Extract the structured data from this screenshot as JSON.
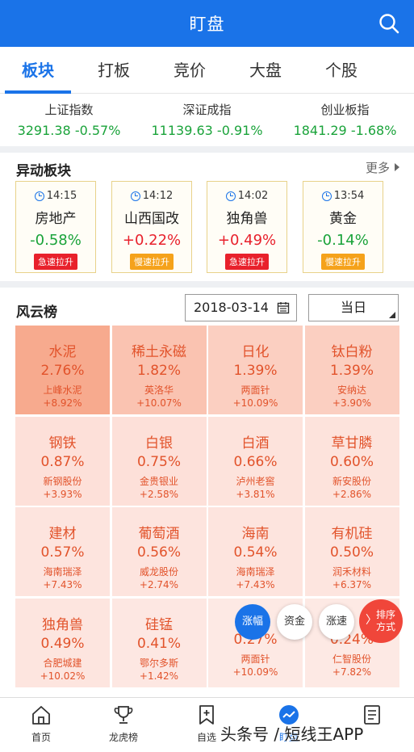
{
  "header": {
    "title": "盯盘"
  },
  "tabs": [
    {
      "label": "板块",
      "active": true
    },
    {
      "label": "打板"
    },
    {
      "label": "竞价"
    },
    {
      "label": "大盘"
    },
    {
      "label": "个股"
    }
  ],
  "indices": [
    {
      "name": "上证指数",
      "value": "3291.38 -0.57%"
    },
    {
      "name": "深证成指",
      "value": "11139.63 -0.91%"
    },
    {
      "name": "创业板指",
      "value": "1841.29 -1.68%"
    }
  ],
  "abnormal": {
    "title": "异动板块",
    "more_label": "更多",
    "cards": [
      {
        "time": "14:15",
        "name": "房地产",
        "pct": "-0.58%",
        "direction": "down",
        "badge": "急速拉升",
        "badge_color": "#e8212c"
      },
      {
        "time": "14:12",
        "name": "山西国改",
        "pct": "+0.22%",
        "direction": "up",
        "badge": "慢速拉升",
        "badge_color": "#f5a21b"
      },
      {
        "time": "14:02",
        "name": "独角兽",
        "pct": "+0.49%",
        "direction": "up",
        "badge": "急速拉升",
        "badge_color": "#e8212c"
      },
      {
        "time": "13:54",
        "name": "黄金",
        "pct": "-0.14%",
        "direction": "down",
        "badge": "慢速拉升",
        "badge_color": "#f5a21b"
      }
    ]
  },
  "ranking": {
    "title": "风云榜",
    "date": "2018-03-14",
    "period": "当日",
    "cells": [
      {
        "sector": "水泥",
        "pct": "2.76%",
        "stock": "上峰水泥",
        "stock_pct": "+8.92%",
        "shade": "#f7aa8e"
      },
      {
        "sector": "稀土永磁",
        "pct": "1.82%",
        "stock": "英洛华",
        "stock_pct": "+10.07%",
        "shade": "#fac3b1"
      },
      {
        "sector": "日化",
        "pct": "1.39%",
        "stock": "两面针",
        "stock_pct": "+10.09%",
        "shade": "#fbcfc1"
      },
      {
        "sector": "钛白粉",
        "pct": "1.39%",
        "stock": "安纳达",
        "stock_pct": "+3.90%",
        "shade": "#fbcfc1"
      },
      {
        "sector": "钢铁",
        "pct": "0.87%",
        "stock": "新钢股份",
        "stock_pct": "+3.93%",
        "shade": "#fde0d9"
      },
      {
        "sector": "白银",
        "pct": "0.75%",
        "stock": "金贵银业",
        "stock_pct": "+2.58%",
        "shade": "#fde0d9"
      },
      {
        "sector": "白酒",
        "pct": "0.66%",
        "stock": "泸州老窖",
        "stock_pct": "+3.81%",
        "shade": "#fde3dc"
      },
      {
        "sector": "草甘膦",
        "pct": "0.60%",
        "stock": "新安股份",
        "stock_pct": "+2.86%",
        "shade": "#fde3dc"
      },
      {
        "sector": "建材",
        "pct": "0.57%",
        "stock": "海南瑞泽",
        "stock_pct": "+7.43%",
        "shade": "#fde4de"
      },
      {
        "sector": "葡萄酒",
        "pct": "0.56%",
        "stock": "威龙股份",
        "stock_pct": "+2.74%",
        "shade": "#fde4de"
      },
      {
        "sector": "海南",
        "pct": "0.54%",
        "stock": "海南瑞泽",
        "stock_pct": "+7.43%",
        "shade": "#fde4de"
      },
      {
        "sector": "有机硅",
        "pct": "0.50%",
        "stock": "润禾材料",
        "stock_pct": "+6.37%",
        "shade": "#fde5df"
      },
      {
        "sector": "独角兽",
        "pct": "0.49%",
        "stock": "合肥城建",
        "stock_pct": "+10.02%",
        "shade": "#fde5df"
      },
      {
        "sector": "硅锰",
        "pct": "0.41%",
        "stock": "鄂尔多斯",
        "stock_pct": "+1.42%",
        "shade": "#fde7e2"
      },
      {
        "sector": "",
        "pct": "0.27%",
        "stock": "两面针",
        "stock_pct": "+10.09%",
        "shade": "#fde9e4"
      },
      {
        "sector": "",
        "pct": "0.24%",
        "stock": "仁智股份",
        "stock_pct": "+7.82%",
        "shade": "#fde9e4"
      }
    ]
  },
  "float_buttons": {
    "gain": "涨幅",
    "capital": "资金",
    "speed": "涨速",
    "sort": "排序方式"
  },
  "colors": {
    "up": "#e8212c",
    "down": "#1aa33a",
    "accent": "#1a73e8"
  },
  "bottom_nav": [
    {
      "label": "首页",
      "icon": "home-icon"
    },
    {
      "label": "龙虎榜",
      "icon": "trophy-icon"
    },
    {
      "label": "自选",
      "icon": "bookmark-add-icon"
    },
    {
      "label": "盯盘",
      "icon": "trend-icon",
      "active": true
    },
    {
      "label": "",
      "icon": "document-icon"
    }
  ],
  "watermark": "头条号 / 短线王APP"
}
